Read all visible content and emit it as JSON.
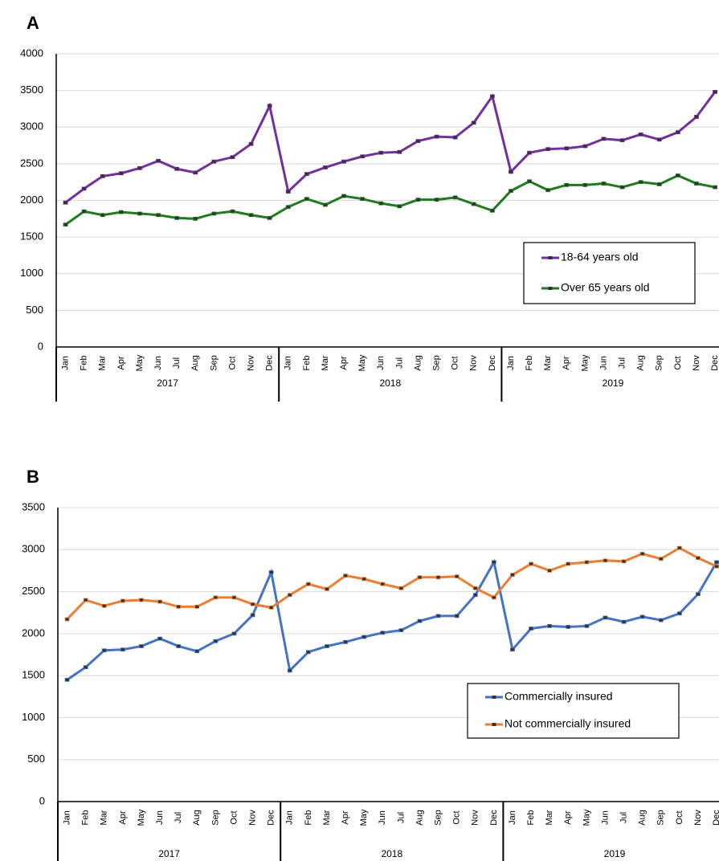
{
  "chart_data": [
    {
      "type": "line",
      "panel_label": "A",
      "categories": [
        "Jan",
        "Feb",
        "Mar",
        "Apr",
        "May",
        "Jun",
        "Jul",
        "Aug",
        "Sep",
        "Oct",
        "Nov",
        "Dec",
        "Jan",
        "Feb",
        "Mar",
        "Apr",
        "May",
        "Jun",
        "Jul",
        "Aug",
        "Sep",
        "Oct",
        "Nov",
        "Dec",
        "Jan",
        "Feb",
        "Mar",
        "Apr",
        "May",
        "Jun",
        "Jul",
        "Aug",
        "Sep",
        "Oct",
        "Nov",
        "Dec"
      ],
      "groups": [
        "2017",
        "2018",
        "2019"
      ],
      "series": [
        {
          "name": "18-64 years old",
          "color": "#7030a0",
          "values": [
            1970,
            2160,
            2330,
            2370,
            2440,
            2540,
            2430,
            2380,
            2530,
            2590,
            2770,
            3290,
            2120,
            2360,
            2450,
            2530,
            2600,
            2650,
            2660,
            2810,
            2870,
            2860,
            3060,
            3420,
            2390,
            2650,
            2700,
            2710,
            2740,
            2840,
            2820,
            2900,
            2830,
            2930,
            3140,
            3480
          ]
        },
        {
          "name": "Over 65 years old",
          "color": "#1e7b1e",
          "values": [
            1670,
            1850,
            1800,
            1840,
            1820,
            1800,
            1760,
            1750,
            1820,
            1850,
            1800,
            1760,
            1910,
            2020,
            1940,
            2060,
            2020,
            1960,
            1920,
            2010,
            2010,
            2040,
            1950,
            1860,
            2130,
            2260,
            2140,
            2210,
            2210,
            2230,
            2180,
            2250,
            2220,
            2340,
            2230,
            2180
          ]
        }
      ],
      "ylim": [
        0,
        4000
      ],
      "yticks": [
        0,
        500,
        1000,
        1500,
        2000,
        2500,
        3000,
        3500,
        4000
      ],
      "grid": true,
      "legend": "lower right"
    },
    {
      "type": "line",
      "panel_label": "B",
      "categories": [
        "Jan",
        "Feb",
        "Mar",
        "Apr",
        "May",
        "Jun",
        "Jul",
        "Aug",
        "Sep",
        "Oct",
        "Nov",
        "Dec",
        "Jan",
        "Feb",
        "Mar",
        "Apr",
        "May",
        "Jun",
        "Jul",
        "Aug",
        "Sep",
        "Oct",
        "Nov",
        "Dec",
        "Jan",
        "Feb",
        "Mar",
        "Apr",
        "May",
        "Jun",
        "Jul",
        "Aug",
        "Sep",
        "Oct",
        "Nov",
        "Dec"
      ],
      "groups": [
        "2017",
        "2018",
        "2019"
      ],
      "series": [
        {
          "name": "Commercially insured",
          "color": "#4472c4",
          "values": [
            1450,
            1600,
            1800,
            1810,
            1850,
            1940,
            1850,
            1790,
            1910,
            2000,
            2220,
            2730,
            1560,
            1780,
            1850,
            1900,
            1960,
            2010,
            2040,
            2150,
            2210,
            2210,
            2460,
            2850,
            1810,
            2060,
            2090,
            2080,
            2090,
            2190,
            2140,
            2200,
            2160,
            2240,
            2470,
            2850
          ]
        },
        {
          "name": "Not commercially insured",
          "color": "#ed7d31",
          "values": [
            2170,
            2400,
            2330,
            2390,
            2400,
            2380,
            2320,
            2320,
            2430,
            2430,
            2350,
            2310,
            2460,
            2590,
            2530,
            2690,
            2650,
            2590,
            2540,
            2670,
            2670,
            2680,
            2540,
            2430,
            2700,
            2830,
            2750,
            2830,
            2850,
            2870,
            2860,
            2950,
            2890,
            3020,
            2900,
            2800
          ]
        }
      ],
      "ylim": [
        0,
        3500
      ],
      "yticks": [
        0,
        500,
        1000,
        1500,
        2000,
        2500,
        3000,
        3500
      ],
      "grid": true,
      "legend": "lower right"
    }
  ]
}
